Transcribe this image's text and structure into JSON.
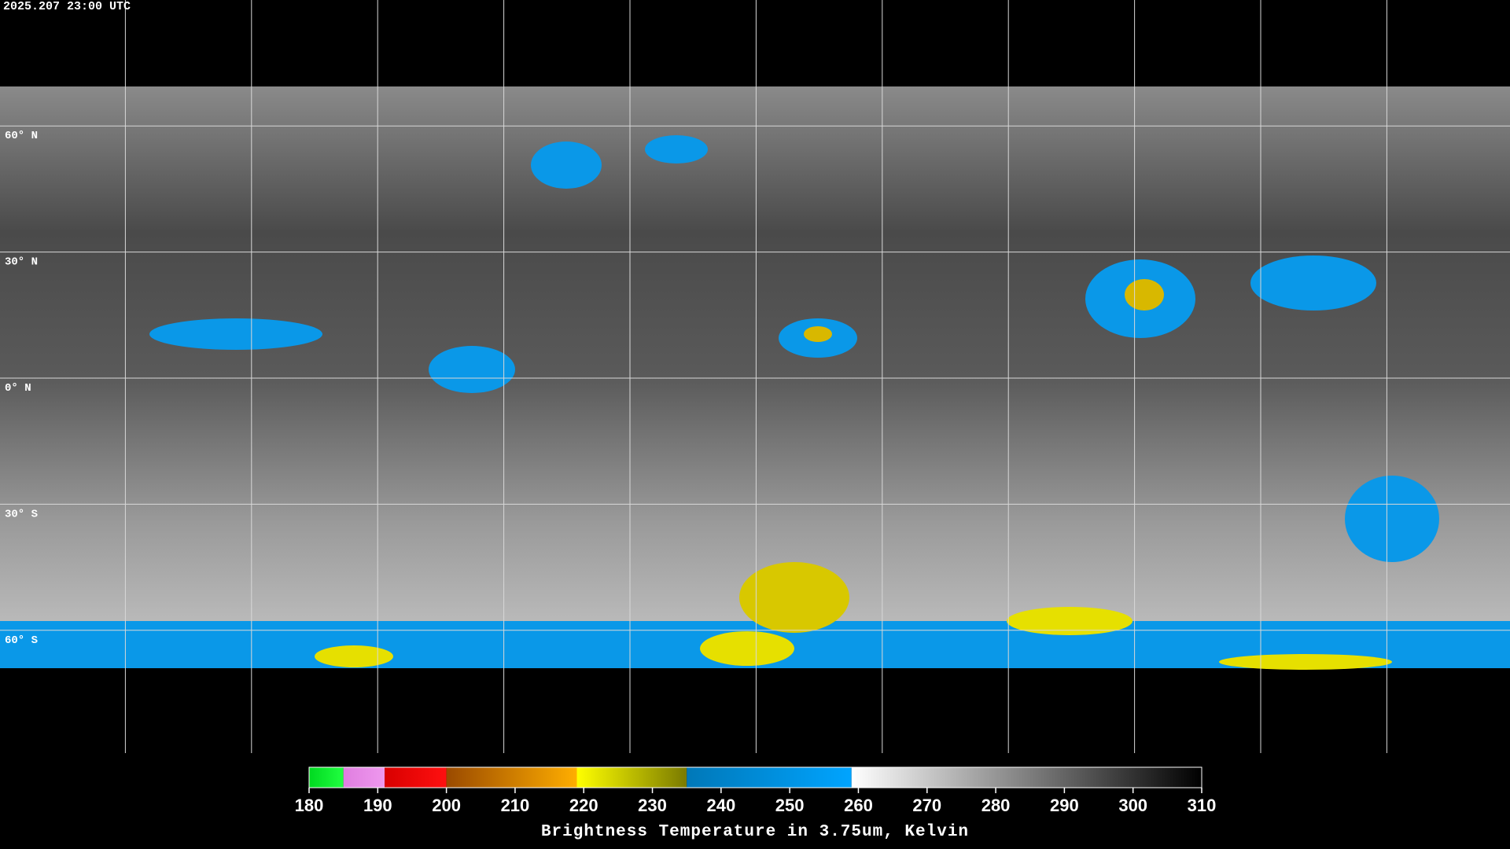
{
  "header": {
    "timestamp": "2025.207 23:00 UTC"
  },
  "map": {
    "latitudes": [
      {
        "value": 60,
        "label": "60° N"
      },
      {
        "value": 30,
        "label": "30° N"
      },
      {
        "value": 0,
        "label": "0° N"
      },
      {
        "value": -30,
        "label": "30° S"
      },
      {
        "value": -60,
        "label": "60° S"
      }
    ]
  },
  "colorbar": {
    "title": "Brightness Temperature in 3.75um, Kelvin",
    "range": [
      180,
      310
    ],
    "ticks": [
      180,
      190,
      200,
      210,
      220,
      230,
      240,
      250,
      260,
      270,
      280,
      290,
      300,
      310
    ],
    "segments": [
      {
        "from": 180,
        "to": 185,
        "colors": [
          "#00d820",
          "#20ff40"
        ]
      },
      {
        "from": 185,
        "to": 191,
        "colors": [
          "#e07ee0",
          "#ee98ee"
        ]
      },
      {
        "from": 191,
        "to": 200,
        "colors": [
          "#d80000",
          "#ff1010"
        ]
      },
      {
        "from": 200,
        "to": 219,
        "colors": [
          "#9a4a00",
          "#ffae00"
        ]
      },
      {
        "from": 219,
        "to": 235,
        "colors": [
          "#ffff00",
          "#7a7a00"
        ]
      },
      {
        "from": 235,
        "to": 259,
        "colors": [
          "#0078b8",
          "#00a4ff"
        ]
      },
      {
        "from": 259,
        "to": 310,
        "colors": [
          "#ffffff",
          "#000000"
        ]
      }
    ]
  }
}
